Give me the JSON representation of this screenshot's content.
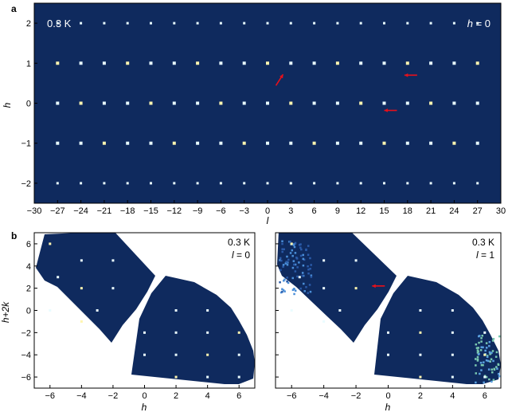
{
  "chart_data": [
    {
      "type": "heatmap",
      "panel_label": "a",
      "temperature_label": "0.3 K",
      "condition_label": "h = 0",
      "xlabel": "l",
      "ylabel": "h",
      "xlim": [
        -30,
        30
      ],
      "ylim": [
        -2.5,
        2.5
      ],
      "xticks": [
        -30,
        -27,
        -24,
        -21,
        -18,
        -15,
        -12,
        -9,
        -6,
        -3,
        0,
        3,
        6,
        9,
        12,
        15,
        18,
        21,
        24,
        27,
        30
      ],
      "yticks": [
        -2,
        -1,
        0,
        1,
        2
      ],
      "background_color": "#0f2a5e",
      "bragg_peaks": {
        "h": [
          -2,
          -1,
          0,
          1,
          2
        ],
        "l": [
          -27,
          -24,
          -21,
          -18,
          -15,
          -12,
          -9,
          -6,
          -3,
          0,
          3,
          6,
          9,
          12,
          15,
          18,
          21,
          24,
          27
        ]
      },
      "arrows": [
        {
          "x": 2.0,
          "y": 0.72,
          "direction": "up-right",
          "color": "#e8101a"
        },
        {
          "x": 17.6,
          "y": 0.7,
          "direction": "left",
          "color": "#e8101a"
        },
        {
          "x": 15.0,
          "y": -0.18,
          "direction": "left",
          "color": "#e8101a"
        }
      ]
    },
    {
      "type": "heatmap",
      "panel_label": "b",
      "temperature_label": "0.3 K",
      "condition_label": "l = 0",
      "xlabel": "h",
      "ylabel": "h+2k",
      "xlim": [
        -7,
        7
      ],
      "ylim": [
        -7,
        7
      ],
      "xticks": [
        -6,
        -4,
        -2,
        0,
        2,
        4,
        6
      ],
      "yticks": [
        -6,
        -4,
        -2,
        0,
        2,
        4,
        6
      ],
      "background_color": "#0f2a5e",
      "missing_data_color": "#ffffff"
    },
    {
      "type": "heatmap",
      "temperature_label": "0.3 K",
      "condition_label": "l = 1",
      "xlabel": "h",
      "xlim": [
        -7,
        7
      ],
      "ylim": [
        -7,
        7
      ],
      "xticks": [
        -6,
        -4,
        -2,
        0,
        2,
        4,
        6
      ],
      "background_color": "#0f2a5e",
      "missing_data_color": "#ffffff",
      "arrows": [
        {
          "x": -1.0,
          "y": 2.2,
          "direction": "left",
          "color": "#e8101a"
        }
      ]
    }
  ],
  "labels": {
    "panel_a": "a",
    "panel_b": "b",
    "a_temp": "0.3 K",
    "a_cond_var": "h",
    "a_cond_rest": " = 0",
    "a_xlabel": "l",
    "a_ylabel": "h",
    "b1_temp": "0.3 K",
    "b1_cond_var": "l",
    "b1_cond_rest": " = 0",
    "b2_temp": "0.3 K",
    "b2_cond_var": "l",
    "b2_cond_rest": " = 1",
    "b_xlabel": "h",
    "b_ylabel": "h+2k"
  }
}
